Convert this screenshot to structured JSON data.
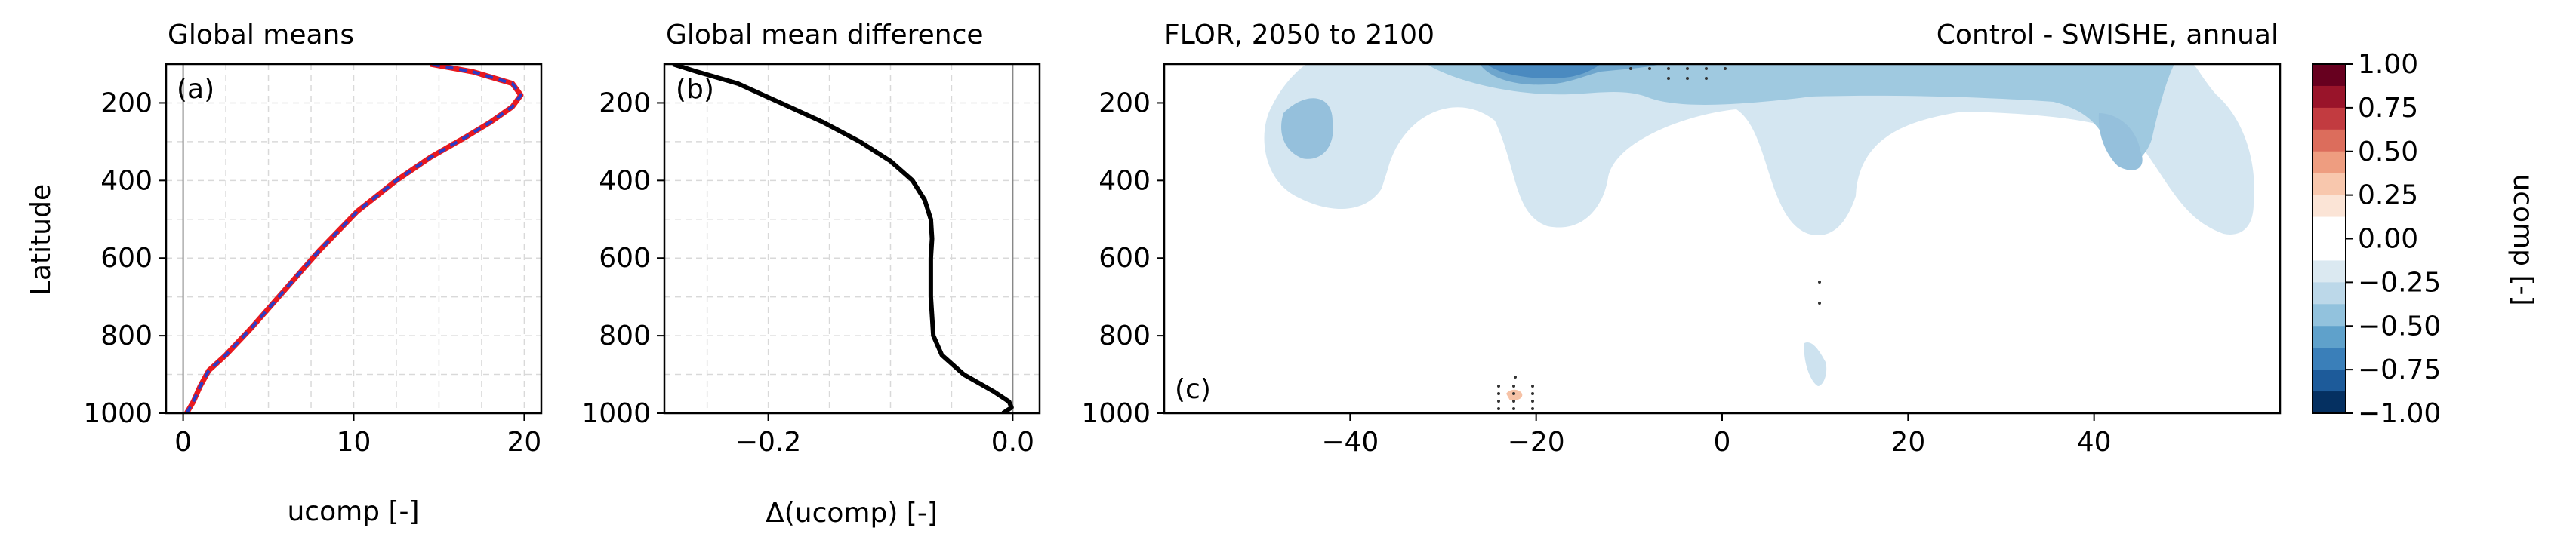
{
  "chart_data": [
    {
      "id": "a",
      "type": "line",
      "title": "Global means",
      "panel_label": "(a)",
      "xlabel": "ucomp [-]",
      "ylabel": "Latitude",
      "xlim": [
        -1,
        21
      ],
      "ylim": [
        1000,
        100
      ],
      "y_inverted": true,
      "xticks": [
        0,
        10,
        20
      ],
      "yticks": [
        200,
        400,
        600,
        800,
        1000
      ],
      "grid": true,
      "series": [
        {
          "color": "#e8191f",
          "style": "solid",
          "x": [
            0.2,
            0.6,
            1.0,
            1.5,
            2.5,
            4.0,
            6.0,
            8.0,
            10.2,
            12.5,
            14.5,
            16.5,
            18.0,
            19.3,
            19.8,
            19.3,
            17.0,
            14.5
          ],
          "y": [
            1000,
            970,
            930,
            890,
            850,
            780,
            680,
            580,
            480,
            400,
            340,
            290,
            250,
            210,
            180,
            150,
            120,
            100
          ]
        },
        {
          "color": "#2a3cc8",
          "style": "dashed",
          "x": [
            0.2,
            0.6,
            1.0,
            1.5,
            2.5,
            4.0,
            6.0,
            8.0,
            10.2,
            12.5,
            14.5,
            16.5,
            18.0,
            19.3,
            19.8,
            19.3,
            17.0,
            14.5
          ],
          "y": [
            1000,
            970,
            930,
            890,
            850,
            780,
            680,
            580,
            480,
            400,
            340,
            290,
            250,
            210,
            180,
            150,
            120,
            100
          ]
        }
      ]
    },
    {
      "id": "b",
      "type": "line",
      "title": "Global mean difference",
      "panel_label": "(b)",
      "xlabel": "Δ(ucomp) [-]",
      "ylabel": "",
      "xlim": [
        -0.285,
        0.022
      ],
      "ylim": [
        1000,
        100
      ],
      "y_inverted": true,
      "xticks": [
        -0.2,
        0.0
      ],
      "xtick_labels": [
        "−0.2",
        "0.0"
      ],
      "yticks": [
        200,
        400,
        600,
        800,
        1000
      ],
      "grid": true,
      "series": [
        {
          "color": "#000000",
          "style": "solid",
          "x": [
            -0.008,
            -0.001,
            -0.003,
            -0.015,
            -0.04,
            -0.058,
            -0.065,
            -0.067,
            -0.067,
            -0.066,
            -0.067,
            -0.072,
            -0.082,
            -0.1,
            -0.125,
            -0.155,
            -0.19,
            -0.225,
            -0.258,
            -0.278
          ],
          "y": [
            1000,
            985,
            970,
            945,
            900,
            850,
            800,
            700,
            600,
            550,
            500,
            450,
            400,
            350,
            300,
            250,
            200,
            150,
            120,
            100
          ]
        }
      ]
    },
    {
      "id": "c",
      "type": "heatmap",
      "title_left": "FLOR, 2050 to 2100",
      "title_right": "Control - SWISHE, annual",
      "panel_label": "(c)",
      "xlim": [
        -60,
        60
      ],
      "ylim": [
        1000,
        100
      ],
      "y_inverted": true,
      "xticks": [
        -40,
        -20,
        0,
        20,
        40
      ],
      "xtick_labels": [
        "−40",
        "−20",
        "0",
        "20",
        "40"
      ],
      "yticks": [
        200,
        400,
        600,
        800,
        1000
      ],
      "colormap": "RdBu_r",
      "colorbar": {
        "label": "ucomp [-]",
        "vmin": -1.0,
        "vmax": 1.0,
        "ticks": [
          1.0,
          0.75,
          0.5,
          0.25,
          0.0,
          -0.25,
          -0.5,
          -0.75,
          -1.0
        ],
        "tick_labels": [
          "1.00",
          "0.75",
          "0.50",
          "0.25",
          "0.00",
          "−0.25",
          "−0.50",
          "−0.75",
          "−1.00"
        ],
        "levels_colors": [
          "#67001f",
          "#99142a",
          "#c23b40",
          "#dc6d5c",
          "#ee9d80",
          "#f8c7ad",
          "#fbe4d6",
          "#ffffff",
          "#ffffff",
          "#dbe9f1",
          "#bcd8e9",
          "#92c2dd",
          "#5fa1cb",
          "#3a7fb9",
          "#1d5b9a",
          "#053061"
        ]
      },
      "features": [
        {
          "name": "upper-jet-negative",
          "level": -0.5,
          "center_x": -23,
          "center_y": 120
        },
        {
          "name": "upper-broad-negative",
          "level": -0.25,
          "x_range": [
            -48,
            52
          ],
          "y_range": [
            100,
            380
          ]
        },
        {
          "name": "north-core-negative",
          "level": -0.5,
          "center_x": 46,
          "center_y": 230
        },
        {
          "name": "south-core-negative",
          "level": -0.5,
          "center_x": -43,
          "center_y": 230
        },
        {
          "name": "low-level-negative",
          "level": -0.25,
          "center_x": 9,
          "center_y": 830
        },
        {
          "name": "surface-positive",
          "level": 0.25,
          "center_x": -22,
          "center_y": 950
        }
      ]
    }
  ]
}
